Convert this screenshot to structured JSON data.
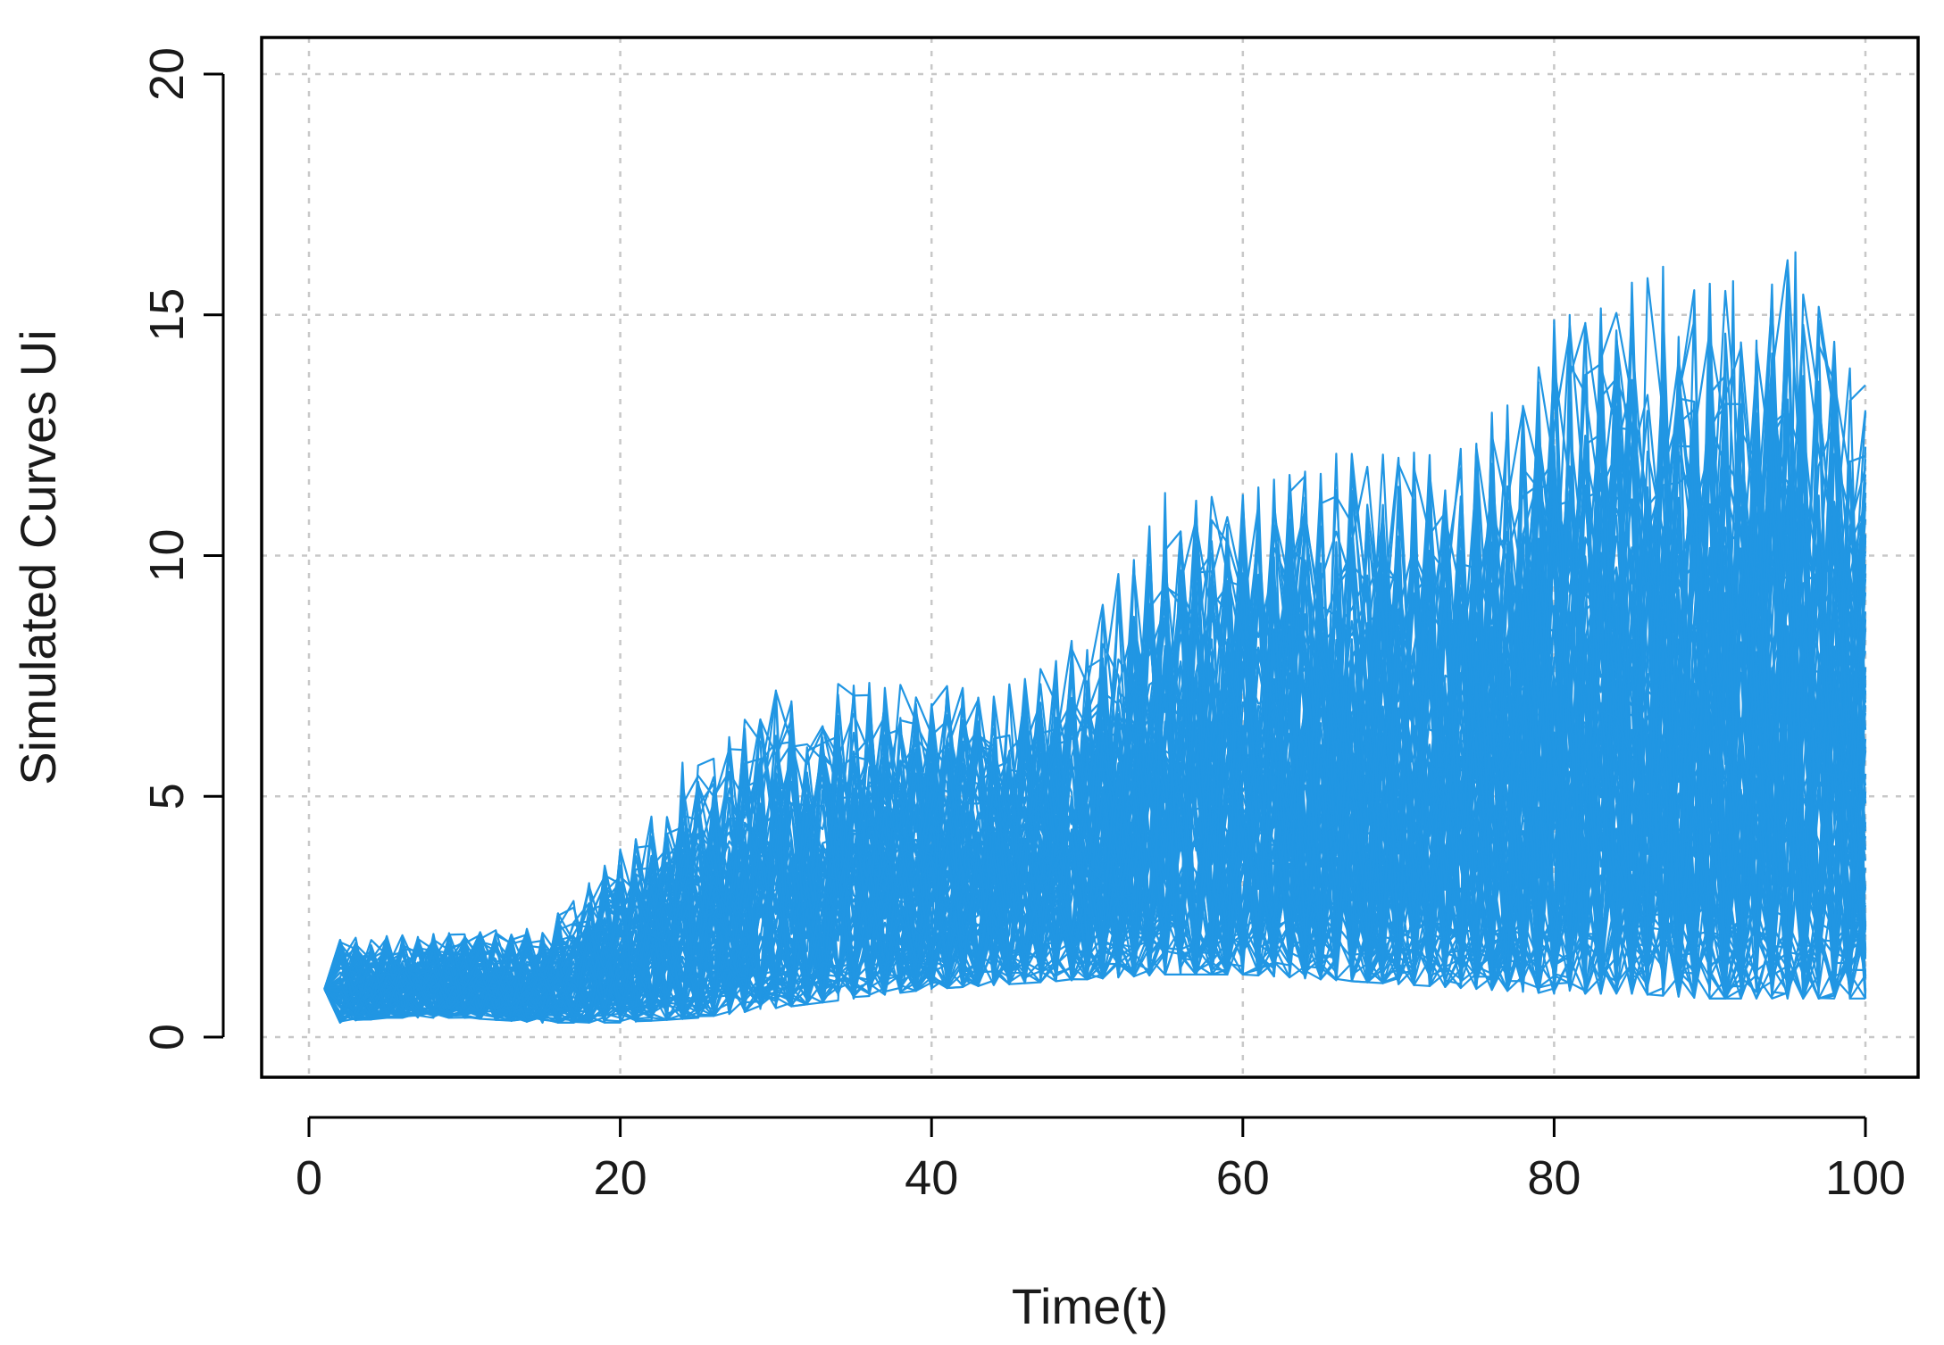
{
  "chart_data": {
    "type": "line",
    "title": "",
    "xlabel": "Time(t)",
    "ylabel": "Simulated Curves Ui",
    "xlim": [
      0,
      100
    ],
    "ylim": [
      0,
      20
    ],
    "x_ticks": [
      0,
      20,
      40,
      60,
      80,
      100
    ],
    "y_ticks": [
      0,
      5,
      10,
      15,
      20
    ],
    "x_tick_labels": [
      "0",
      "20",
      "40",
      "60",
      "80",
      "100"
    ],
    "y_tick_labels": [
      "0",
      "5",
      "10",
      "15",
      "20"
    ],
    "grid": true,
    "legend": "none",
    "series_color": "#2196e3",
    "n_series": 100,
    "x": [
      1,
      100
    ],
    "x_step": 1,
    "envelope": {
      "t": [
        1,
        2,
        5,
        10,
        15,
        20,
        25,
        30,
        35,
        40,
        45,
        50,
        55,
        60,
        65,
        70,
        75,
        80,
        85,
        90,
        95,
        100
      ],
      "lower": [
        1.0,
        0.3,
        0.4,
        0.4,
        0.3,
        0.3,
        0.4,
        0.6,
        0.8,
        1.0,
        1.1,
        1.2,
        1.3,
        1.3,
        1.2,
        1.1,
        1.0,
        0.9,
        0.9,
        0.8,
        0.8,
        0.8
      ],
      "upper": [
        1.0,
        2.1,
        2.1,
        2.2,
        2.3,
        3.9,
        5.7,
        7.2,
        7.4,
        7.3,
        7.4,
        8.5,
        11.3,
        11.3,
        12.2,
        12.2,
        12.5,
        15.0,
        16.0,
        15.7,
        16.3,
        13.6
      ]
    },
    "notable_peaks": [
      {
        "x": 20,
        "y": 3.9
      },
      {
        "x": 24,
        "y": 5.7
      },
      {
        "x": 30,
        "y": 7.2
      },
      {
        "x": 55,
        "y": 11.3
      },
      {
        "x": 81,
        "y": 15.0
      },
      {
        "x": 87,
        "y": 16.0
      },
      {
        "x": 91.5,
        "y": 15.7
      },
      {
        "x": 95.5,
        "y": 16.3
      }
    ]
  }
}
